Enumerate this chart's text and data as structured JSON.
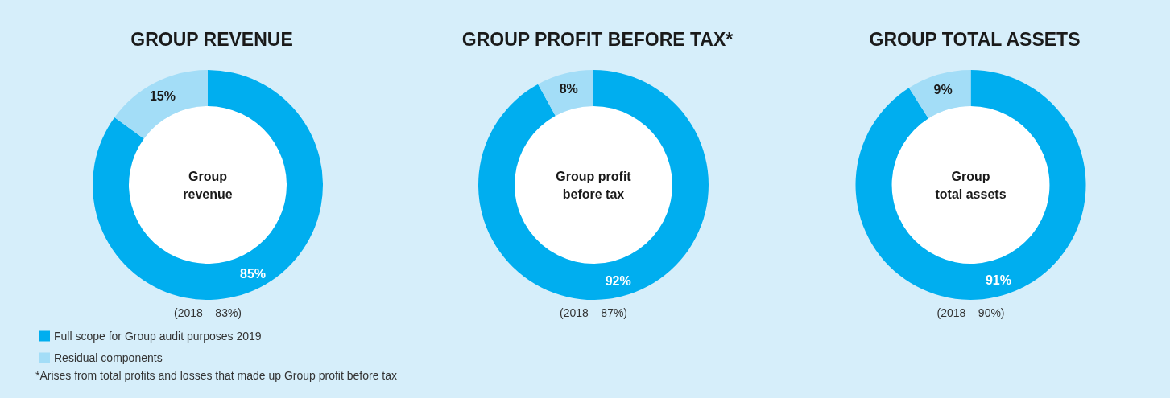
{
  "chart_data": [
    {
      "type": "donut",
      "title": "GROUP REVENUE",
      "categories": [
        "Full scope for Group audit purposes 2019",
        "Residual components"
      ],
      "values": [
        85,
        15
      ],
      "value_labels": [
        "85%",
        "15%"
      ],
      "colors": [
        "#00aeef",
        "#a3ddf7"
      ],
      "legend": "bottom left",
      "annotations": [
        "Group\nrevenue",
        "(2018 – 83%)",
        "*Arises from total profits and losses that made up Group profit before tax"
      ]
    },
    {
      "type": "donut",
      "title": "GROUP PROFIT BEFORE TAX*",
      "categories": [
        null,
        null
      ],
      "values": [
        92,
        8
      ],
      "value_labels": [
        "92%",
        "8%"
      ],
      "colors": [
        "#00aeef",
        "#a3ddf7"
      ],
      "annotations": [
        "Group profit\nbefore tax",
        "(2018 – 87%)"
      ]
    },
    {
      "type": "donut",
      "title": "GROUP TOTAL ASSETS",
      "categories": [
        null,
        null
      ],
      "values": [
        91,
        9
      ],
      "value_labels": [
        "91%",
        "9%"
      ],
      "colors": [
        "#00aeef",
        "#a3ddf7"
      ],
      "annotations": [
        "Group\ntotal assets",
        "(2018 – 90%)"
      ]
    }
  ]
}
